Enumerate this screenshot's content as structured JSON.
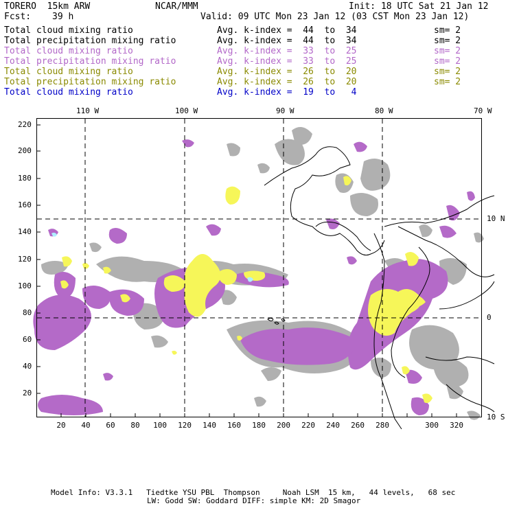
{
  "header": {
    "model": "TORERO  15km ARW",
    "center": "NCAR/MMM",
    "init": "Init: 18 UTC Sat 21 Jan 12",
    "fcst_label": "Fcst:",
    "fcst_value": "39 h",
    "valid": "Valid: 09 UTC Mon 23 Jan 12 (03 CST Mon 23 Jan 12)"
  },
  "legend": [
    {
      "field": "Total cloud mixing ratio",
      "range": "Avg. k-index =  44  to  34",
      "sm": "sm= 2",
      "color": "#000000"
    },
    {
      "field": "Total precipitation mixing ratio",
      "range": "Avg. k-index =  44  to  34",
      "sm": "sm= 2",
      "color": "#000000"
    },
    {
      "field": "Total cloud mixing ratio",
      "range": "Avg. k-index =  33  to  25",
      "sm": "sm= 2",
      "color": "#b267c8"
    },
    {
      "field": "Total precipitation mixing ratio",
      "range": "Avg. k-index =  33  to  25",
      "sm": "sm= 2",
      "color": "#b267c8"
    },
    {
      "field": "Total cloud mixing ratio",
      "range": "Avg. k-index =  26  to  20",
      "sm": "sm= 2",
      "color": "#8a8a00"
    },
    {
      "field": "Total precipitation mixing ratio",
      "range": "Avg. k-index =  26  to  20",
      "sm": "sm= 2",
      "color": "#8a8a00"
    },
    {
      "field": "Total cloud mixing ratio",
      "range": "Avg. k-index =  19  to   4",
      "sm": "",
      "color": "#0000c8"
    }
  ],
  "axes": {
    "top_lon": [
      "110 W",
      "100 W",
      "90 W",
      "80 W",
      "70 W"
    ],
    "right_lat": [
      "10 N",
      "0",
      "10 S"
    ],
    "left_y": [
      "220",
      "200",
      "180",
      "160",
      "140",
      "120",
      "100",
      "80",
      "60",
      "40",
      "20"
    ],
    "bottom_x": [
      "20",
      "40",
      "60",
      "80",
      "100",
      "120",
      "140",
      "160",
      "180",
      "200",
      "220",
      "240",
      "260",
      "280",
      "300",
      "320"
    ]
  },
  "colors": {
    "gray": "#a8a8a8",
    "purple": "#b46ac8",
    "yellow": "#f6f659",
    "cyan": "#aef0ff",
    "coast": "#000000"
  },
  "footer": {
    "line1": "Model Info: V3.3.1   Tiedtke YSU PBL  Thompson     Noah LSM  15 km,   44 levels,   68 sec",
    "line2": "LW: Godd SW: Goddard DIFF: simple KM: 2D Smagor"
  }
}
